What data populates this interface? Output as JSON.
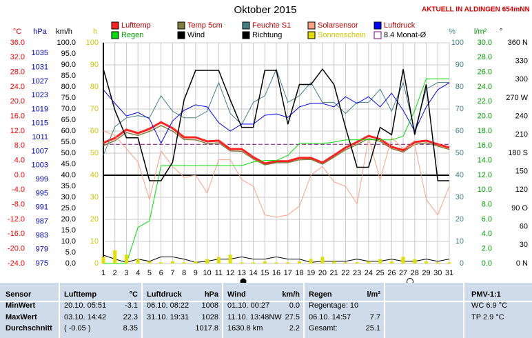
{
  "chart_data": {
    "type": "line",
    "title": "Oktober 2015",
    "subtitle": "AKTUELL IN ALDINGEN 654mNN",
    "x": [
      1,
      2,
      3,
      4,
      5,
      6,
      7,
      8,
      9,
      10,
      11,
      12,
      13,
      14,
      15,
      16,
      17,
      18,
      19,
      20,
      21,
      22,
      23,
      24,
      25,
      26,
      27,
      28,
      29,
      30,
      31
    ],
    "xlim": [
      1,
      31
    ],
    "grid": true,
    "axes": {
      "temp": {
        "label": "°C",
        "color": "#ff0000",
        "ylim": [
          -24,
          36
        ],
        "zero_line": true,
        "yticks": [
          {
            "value": 36,
            "label": "36.0"
          },
          {
            "value": 32,
            "label": "32.0"
          },
          {
            "value": 28,
            "label": "28.0"
          },
          {
            "value": 24,
            "label": "24.0"
          },
          {
            "value": 20,
            "label": "20.0"
          },
          {
            "value": 16,
            "label": "16.0"
          },
          {
            "value": 12,
            "label": "12.0"
          },
          {
            "value": 8,
            "label": "8.0"
          },
          {
            "value": 4,
            "label": "4.0"
          },
          {
            "value": 0,
            "label": "0.0"
          },
          {
            "value": -4,
            "label": "-4.0"
          },
          {
            "value": -8,
            "label": "-8.0"
          },
          {
            "value": -12,
            "label": "-12.0"
          },
          {
            "value": -16,
            "label": "-16.0"
          },
          {
            "value": -20,
            "label": "-20.0"
          },
          {
            "value": -24,
            "label": "-24.0"
          }
        ]
      },
      "pressure": {
        "label": "hPa",
        "color": "#0000c0",
        "ylim": [
          975,
          1038
        ],
        "yticks": [
          1035,
          1031,
          1027,
          1023,
          1019,
          1015,
          1011,
          1007,
          1003,
          999,
          995,
          991,
          987,
          983,
          979,
          975
        ]
      },
      "wind": {
        "label": "km/h",
        "color": "#000000",
        "ylim": [
          0,
          100
        ],
        "yticks": [
          {
            "value": 100,
            "label": "100.0"
          },
          {
            "value": 95,
            "label": "95.0"
          },
          {
            "value": 90,
            "label": "90.0"
          },
          {
            "value": 85,
            "label": "85.0"
          },
          {
            "value": 80,
            "label": "80.0"
          },
          {
            "value": 75,
            "label": "75.0"
          },
          {
            "value": 70,
            "label": "70.0"
          },
          {
            "value": 65,
            "label": "65.0"
          },
          {
            "value": 60,
            "label": "60.0"
          },
          {
            "value": 55,
            "label": "55.0"
          },
          {
            "value": 50,
            "label": "50.0"
          },
          {
            "value": 45,
            "label": "45.0"
          },
          {
            "value": 40,
            "label": "40.0"
          },
          {
            "value": 35,
            "label": "35.0"
          },
          {
            "value": 30,
            "label": "30.0"
          },
          {
            "value": 25,
            "label": "25.0"
          },
          {
            "value": 20,
            "label": "20.0"
          },
          {
            "value": 15,
            "label": "15.0"
          },
          {
            "value": 10,
            "label": "10.0"
          },
          {
            "value": 5,
            "label": "5.0"
          },
          {
            "value": 0,
            "label": "0.0"
          }
        ]
      },
      "sun": {
        "label": "h",
        "color": "#c8c800",
        "ylim": [
          0,
          100
        ],
        "yticks": [
          100,
          90,
          80,
          70,
          60,
          50,
          40,
          30,
          20,
          10,
          0
        ]
      },
      "humidity": {
        "label": "%",
        "color": "#408080",
        "ylim": [
          0,
          100
        ],
        "yticks": [
          100,
          90,
          80,
          70,
          60,
          50,
          40,
          30,
          20,
          10,
          0
        ]
      },
      "rain": {
        "label": "l/m²",
        "color": "#00a000",
        "ylim": [
          0,
          30
        ],
        "yticks": [
          {
            "value": 30,
            "label": "30.0"
          },
          {
            "value": 28,
            "label": "28.0"
          },
          {
            "value": 26,
            "label": "26.0"
          },
          {
            "value": 24,
            "label": "24.0"
          },
          {
            "value": 22,
            "label": "22.0"
          },
          {
            "value": 20,
            "label": "20.0"
          },
          {
            "value": 18,
            "label": "18.0"
          },
          {
            "value": 16,
            "label": "16.0"
          },
          {
            "value": 14,
            "label": "14.0"
          },
          {
            "value": 12,
            "label": "12.0"
          },
          {
            "value": 10,
            "label": "10.0"
          },
          {
            "value": 8,
            "label": "8.0"
          },
          {
            "value": 6,
            "label": "6.0"
          },
          {
            "value": 4,
            "label": "4.0"
          },
          {
            "value": 2,
            "label": "2.0"
          },
          {
            "value": 0,
            "label": "0.0"
          }
        ]
      },
      "direction": {
        "label": "°",
        "color": "#000000",
        "ylim": [
          0,
          360
        ],
        "yticks": [
          {
            "value": 360,
            "label": "360 N"
          },
          330,
          300,
          {
            "value": 270,
            "label": "270 W"
          },
          240,
          210,
          {
            "value": 180,
            "label": "180 S"
          },
          150,
          120,
          {
            "value": 90,
            "label": "90 O"
          },
          60,
          30,
          {
            "value": 0,
            "label": "0 N"
          }
        ]
      }
    },
    "series": [
      {
        "name": "Lufttemp",
        "color": "#ff2020",
        "axis": "temp",
        "values": [
          8.8,
          10.1,
          12.4,
          11.4,
          12.6,
          14.4,
          12.8,
          10.3,
          10.3,
          9.2,
          9.4,
          7.1,
          7.1,
          4.9,
          3.2,
          3.8,
          3.8,
          4.7,
          4.7,
          3.4,
          5.4,
          7.5,
          9.0,
          10.7,
          9.8,
          7.7,
          6.8,
          9.0,
          9.4,
          8.4,
          7.5
        ]
      },
      {
        "name": "Temp 5cm",
        "color": "#808040",
        "axis": "temp",
        "values": [
          8.0,
          9.4,
          11.6,
          10.8,
          11.9,
          13.5,
          12.0,
          9.7,
          9.6,
          8.6,
          8.8,
          6.6,
          6.5,
          4.4,
          2.8,
          3.4,
          3.4,
          4.2,
          4.3,
          3.0,
          4.9,
          6.9,
          8.3,
          10.0,
          9.2,
          7.2,
          6.3,
          8.4,
          8.8,
          7.9,
          7.0
        ]
      },
      {
        "name": "Feuchte S1",
        "color": "#408080",
        "axis": "humidity",
        "values": [
          49,
          62,
          66,
          67,
          66,
          76,
          69,
          66,
          66,
          69,
          82,
          68,
          63,
          73,
          76,
          88,
          73,
          76,
          82,
          73,
          73,
          68,
          73,
          73,
          79,
          69,
          82,
          60,
          79,
          82,
          82
        ]
      },
      {
        "name": "Solarsensor",
        "color": "#ffa080",
        "axis": "sun",
        "values": [
          60,
          58,
          52,
          46,
          29,
          51,
          44,
          39,
          40,
          32,
          47,
          47,
          38,
          35,
          22,
          21,
          22,
          26,
          40,
          44,
          37,
          35,
          27,
          57,
          38,
          57,
          52,
          54,
          29,
          22,
          35
        ]
      },
      {
        "name": "Luftdruck",
        "color": "#0000ff",
        "axis": "pressure",
        "values": [
          1024.6,
          1020.7,
          1017.1,
          1018.1,
          1016.3,
          1009.3,
          1015.7,
          1018.7,
          1020.3,
          1019.7,
          1015.2,
          1012.8,
          1014.8,
          1014.8,
          1017.3,
          1017.7,
          1016.7,
          1019.7,
          1020.7,
          1020.7,
          1019.7,
          1022.6,
          1020.7,
          1022.6,
          1019.7,
          1023.6,
          1018.7,
          1012.8,
          1019.7,
          1024.6,
          1026.6
        ]
      },
      {
        "name": "Regen",
        "color": "#00e000",
        "axis": "rain",
        "values": [
          0,
          0,
          0,
          4.9,
          5.8,
          13.3,
          13.3,
          13.3,
          13.3,
          13.3,
          13.3,
          13.3,
          13.3,
          13.8,
          14.0,
          14.0,
          14.7,
          16.3,
          16.3,
          16.3,
          16.5,
          16.8,
          16.8,
          16.8,
          16.8,
          16.8,
          17.3,
          20.8,
          25.1,
          25.1,
          25.1
        ]
      },
      {
        "name": "Wind",
        "color": "#000000",
        "axis": "wind",
        "values": [
          3.8,
          2.0,
          0.5,
          2.0,
          1.0,
          3.0,
          3.0,
          2.0,
          0.5,
          1.0,
          2.0,
          2.0,
          3.0,
          2.0,
          2.0,
          3.0,
          2.0,
          2.0,
          0.5,
          1.0,
          1.0,
          1.0,
          2.0,
          1.0,
          1.0,
          2.0,
          1.0,
          1.0,
          2.0,
          1.0,
          2.0
        ]
      },
      {
        "name": "Richtung",
        "color": "#000000",
        "axis": "direction",
        "values": [
          317,
          250,
          205,
          205,
          135,
          135,
          165,
          267,
          315,
          315,
          315,
          267,
          222,
          222,
          315,
          315,
          227,
          292,
          292,
          317,
          292,
          222,
          157,
          157,
          222,
          210,
          317,
          210,
          292,
          135,
          135
        ]
      },
      {
        "name": "Sonnenschein",
        "color": "#e0e000",
        "axis": "sun",
        "type": "bar",
        "values": [
          3,
          6,
          4,
          2,
          1,
          0.5,
          1,
          0.5,
          1,
          2,
          3,
          4,
          0.5,
          0.5,
          1,
          0.5,
          0.5,
          1,
          2,
          3,
          1,
          0.5,
          0.5,
          1,
          2,
          1,
          3,
          2,
          1,
          0.5,
          0.5
        ]
      }
    ],
    "monthly_mean": {
      "name": "8.4 Monat-Ø",
      "value": 8.4,
      "axis": "temp",
      "color": "#800080"
    }
  },
  "table": {
    "rows": [
      [
        "Sensor",
        "Lufttemp",
        "°C",
        "Luftdruck",
        "hPa",
        "Wind",
        "km/h",
        "Regen",
        "l/m²",
        "PMV-1:1"
      ],
      [
        "MinWert",
        "20.10. 05:51",
        "-3.1",
        "06.10. 08:22",
        "1008",
        "01.10. 00:27",
        "0.0",
        "Regentage: 10",
        null,
        "WC 6.9 °C"
      ],
      [
        "MaxWert",
        "03.10. 14:42",
        "22.3",
        "31.10. 19:31",
        "1028",
        "11.10. 13:48NW",
        "27.5",
        "06.10. 14:57",
        "7.7",
        "TP 2.9 °C"
      ],
      [
        "Durchschnitt",
        "( -0.05 )",
        "8.35",
        null,
        "1017.8",
        "1630.8 km",
        "2.2",
        "Gesamt:",
        "25.1",
        null
      ]
    ]
  }
}
